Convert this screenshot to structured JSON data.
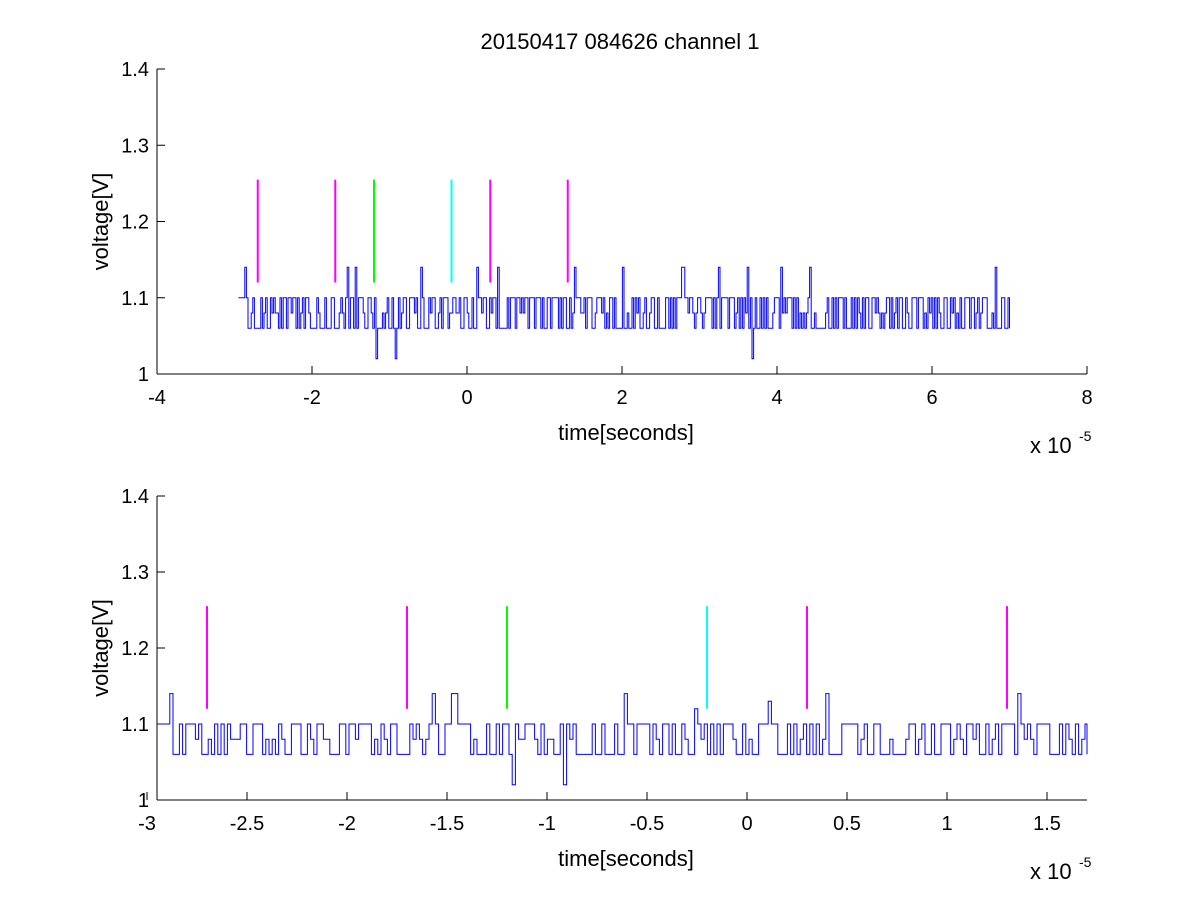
{
  "figure": {
    "title": "20150417 084626 channel 1"
  },
  "chart_data": [
    {
      "type": "line",
      "xlabel": "time[seconds]",
      "ylabel": "voltage[V]",
      "x_multiplier_label": "x 10",
      "x_multiplier_exponent": "-5",
      "xlim": [
        -4,
        8
      ],
      "ylim": [
        1,
        1.4
      ],
      "xticks": [
        -4,
        -2,
        0,
        2,
        4,
        6,
        8
      ],
      "xtick_labels": [
        "-4",
        "-2",
        "0",
        "2",
        "4",
        "6",
        "8"
      ],
      "yticks": [
        1,
        1.1,
        1.2,
        1.3,
        1.4
      ],
      "ytick_labels": [
        "1",
        "1.1",
        "1.2",
        "1.3",
        "1.4"
      ],
      "grid": false,
      "series": [
        {
          "color": "#0000ff",
          "x_range": [
            -2.95,
            7.0
          ],
          "baseline_levels": [
            1.06,
            1.08,
            1.1
          ],
          "spikes_up": [
            {
              "x": -2.87,
              "y": 1.14
            },
            {
              "x": -1.55,
              "y": 1.14
            },
            {
              "x": -1.45,
              "y": 1.14
            },
            {
              "x": -0.6,
              "y": 1.14
            },
            {
              "x": 0.12,
              "y": 1.14
            },
            {
              "x": 0.4,
              "y": 1.14
            },
            {
              "x": 1.38,
              "y": 1.14
            },
            {
              "x": 2.0,
              "y": 1.14
            },
            {
              "x": 2.78,
              "y": 1.14
            },
            {
              "x": 3.25,
              "y": 1.14
            },
            {
              "x": 3.62,
              "y": 1.14
            },
            {
              "x": 4.05,
              "y": 1.14
            },
            {
              "x": 4.42,
              "y": 1.14
            },
            {
              "x": 6.82,
              "y": 1.14
            },
            {
              "x": 7.0,
              "y": 1.14
            }
          ],
          "spikes_down": [
            {
              "x": -1.18,
              "y": 1.02
            },
            {
              "x": -0.92,
              "y": 1.02
            },
            {
              "x": 3.68,
              "y": 1.02
            }
          ]
        },
        {
          "name": "",
          "color": "#ff00ff",
          "type": "vertical-markers",
          "x": [
            -2.7,
            -1.7,
            0.3,
            1.3
          ],
          "y_range": [
            1.12,
            1.255
          ]
        },
        {
          "color": "#00ff00",
          "type": "vertical-markers",
          "x": [
            -1.2
          ],
          "y_range": [
            1.12,
            1.255
          ]
        },
        {
          "color": "#00ffff",
          "type": "vertical-markers",
          "x": [
            -0.2
          ],
          "y_range": [
            1.12,
            1.255
          ]
        }
      ]
    },
    {
      "type": "line",
      "xlabel": "time[seconds]",
      "ylabel": "voltage[V]",
      "x_multiplier_label": "x 10",
      "x_multiplier_exponent": "-5",
      "xlim": [
        -2.95,
        1.7
      ],
      "ylim": [
        1,
        1.4
      ],
      "xticks": [
        -3,
        -2.5,
        -2,
        -1.5,
        -1,
        -0.5,
        0,
        0.5,
        1,
        1.5
      ],
      "xtick_labels": [
        "-3",
        "-2.5",
        "-2",
        "-1.5",
        "-1",
        "-0.5",
        "0",
        "0.5",
        "1",
        "1.5"
      ],
      "yticks": [
        1,
        1.1,
        1.2,
        1.3,
        1.4
      ],
      "ytick_labels": [
        "1",
        "1.1",
        "1.2",
        "1.3",
        "1.4"
      ],
      "grid": false,
      "series": [
        {
          "color": "#0000ff",
          "x_range": [
            -2.95,
            1.7
          ],
          "baseline_levels": [
            1.06,
            1.08,
            1.1
          ],
          "spikes_up": [
            {
              "x": -2.89,
              "y": 1.14
            },
            {
              "x": -1.58,
              "y": 1.14
            },
            {
              "x": -1.47,
              "y": 1.14
            },
            {
              "x": -0.62,
              "y": 1.14
            },
            {
              "x": -0.26,
              "y": 1.12
            },
            {
              "x": 0.11,
              "y": 1.13
            },
            {
              "x": 0.4,
              "y": 1.14
            },
            {
              "x": 1.35,
              "y": 1.14
            }
          ],
          "spikes_down": [
            {
              "x": -1.17,
              "y": 1.02
            },
            {
              "x": -0.92,
              "y": 1.02
            }
          ]
        },
        {
          "color": "#ff00ff",
          "type": "vertical-markers",
          "x": [
            -2.7,
            -1.7,
            0.3,
            1.3
          ],
          "y_range": [
            1.12,
            1.255
          ]
        },
        {
          "color": "#00ff00",
          "type": "vertical-markers",
          "x": [
            -1.2
          ],
          "y_range": [
            1.12,
            1.255
          ]
        },
        {
          "color": "#00ffff",
          "type": "vertical-markers",
          "x": [
            -0.2
          ],
          "y_range": [
            1.12,
            1.255
          ]
        }
      ]
    }
  ]
}
